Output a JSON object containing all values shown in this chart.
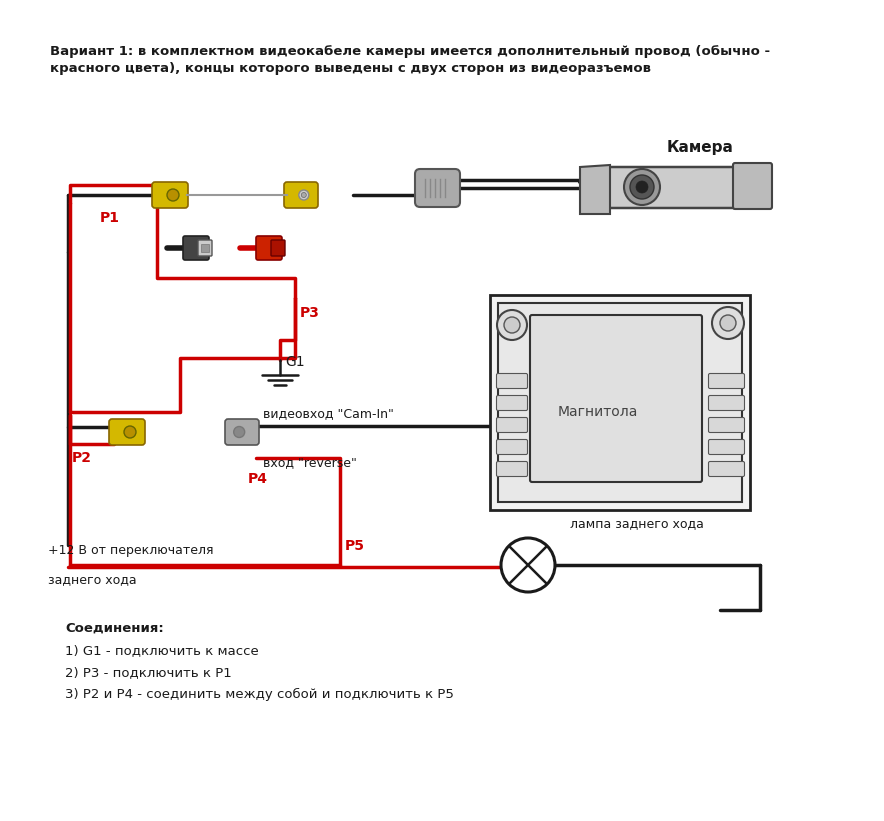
{
  "bg_color": "#ffffff",
  "header_text": "Вариант 1: в комплектном видеокабеле камеры имеется дополнительный провод (обычно -\nкрасного цвета), концы которого выведены с двух сторон из видеоразъемов",
  "label_camera": "Камера",
  "label_magnitola": "Магнитола",
  "label_lamp": "лампа заднего хода",
  "label_plus12": "+12 В от переключателя",
  "label_plus12b": "заднего хода",
  "label_cam_in": "видеовход \"Cam-In\"",
  "label_reverse": "вход \"reverse\"",
  "label_P1": "P1",
  "label_P2": "P2",
  "label_P3": "P3",
  "label_P4": "P4",
  "label_P5": "P5",
  "label_G1": "G1",
  "connections_title": "Соединения:",
  "connection1": "1) G1 - подключить к массе",
  "connection2": "2) P3 - подключить к P1",
  "connection3": "3) P2 и P4 - соединить между собой и подключить к P5",
  "black_wire": "#1a1a1a",
  "red_wire": "#cc0000",
  "yellow_color": "#d4b800",
  "red_connector": "#cc2200",
  "black_connector": "#333333",
  "gray_color": "#999999"
}
